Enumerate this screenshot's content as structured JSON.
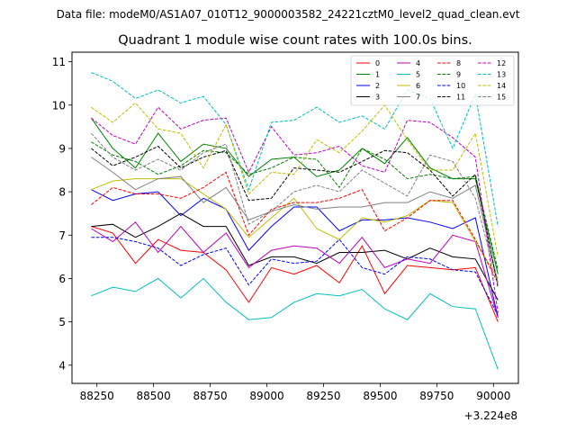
{
  "chart_data": {
    "type": "line",
    "suptitle": "Data file: modeM0/AS1A07_010T12_9000003582_24221cztM0_level2_quad_clean.evt",
    "title": "Quadrant 1 module wise count rates with 100.0s bins.",
    "xlabel": "",
    "ylabel": "",
    "x_offset_label": "+3.224e8",
    "x_offset": 322400000,
    "xlim": [
      88140,
      90110
    ],
    "ylim": [
      3.58,
      11.22
    ],
    "xticks": [
      88250,
      88500,
      88750,
      89000,
      89250,
      89500,
      89750,
      90000
    ],
    "xtick_labels": [
      "88250",
      "88500",
      "88750",
      "89000",
      "89250",
      "89500",
      "89750",
      "90000"
    ],
    "yticks": [
      4,
      5,
      6,
      7,
      8,
      9,
      10,
      11
    ],
    "ytick_labels": [
      "4",
      "5",
      "6",
      "7",
      "8",
      "9",
      "10",
      "11"
    ],
    "x": [
      88225,
      88320,
      88420,
      88520,
      88620,
      88720,
      88820,
      88920,
      89020,
      89120,
      89220,
      89320,
      89420,
      89520,
      89620,
      89720,
      89820,
      89920,
      90020
    ],
    "legend_position": "top-right",
    "series": [
      {
        "name": "0",
        "color": "#ff0000",
        "dash": "solid",
        "values": [
          7.2,
          7.05,
          6.35,
          6.9,
          6.65,
          6.6,
          6.2,
          5.45,
          6.25,
          6.1,
          6.3,
          5.9,
          6.75,
          5.65,
          6.3,
          6.25,
          6.2,
          6.25,
          5.0
        ]
      },
      {
        "name": "1",
        "color": "#008000",
        "dash": "solid",
        "values": [
          9.7,
          9.0,
          8.55,
          9.35,
          8.7,
          9.1,
          9.0,
          8.35,
          8.75,
          8.8,
          8.35,
          8.5,
          9.0,
          8.65,
          9.25,
          8.55,
          8.3,
          8.3,
          6.1
        ]
      },
      {
        "name": "2",
        "color": "#0000ff",
        "dash": "solid",
        "values": [
          8.05,
          7.8,
          7.95,
          8.0,
          7.45,
          7.85,
          7.6,
          6.65,
          7.2,
          7.65,
          7.65,
          7.1,
          7.35,
          7.35,
          7.4,
          7.3,
          7.15,
          7.4,
          5.1
        ]
      },
      {
        "name": "3",
        "color": "#000000",
        "dash": "solid",
        "values": [
          7.2,
          7.25,
          6.95,
          7.2,
          7.5,
          7.2,
          7.2,
          6.3,
          6.5,
          6.5,
          6.35,
          6.6,
          6.6,
          6.65,
          6.45,
          6.7,
          6.5,
          6.45,
          5.5
        ]
      },
      {
        "name": "4",
        "color": "#bf00bf",
        "dash": "solid",
        "values": [
          7.15,
          6.85,
          7.3,
          6.6,
          7.2,
          6.6,
          7.05,
          6.25,
          6.65,
          6.75,
          6.7,
          6.35,
          6.95,
          6.25,
          6.45,
          6.35,
          7.0,
          6.85,
          5.1
        ]
      },
      {
        "name": "5",
        "color": "#00bfbf",
        "dash": "solid",
        "values": [
          5.6,
          5.8,
          5.7,
          6.0,
          5.55,
          6.0,
          5.45,
          5.05,
          5.1,
          5.45,
          5.65,
          5.6,
          5.75,
          5.3,
          5.05,
          5.65,
          5.35,
          5.3,
          3.9
        ]
      },
      {
        "name": "6",
        "color": "#bfbf00",
        "dash": "solid",
        "values": [
          8.05,
          8.25,
          8.3,
          8.3,
          8.3,
          7.95,
          7.6,
          6.95,
          7.4,
          7.85,
          7.15,
          6.9,
          7.4,
          7.3,
          7.45,
          7.8,
          7.75,
          6.85,
          6.0
        ]
      },
      {
        "name": "7",
        "color": "#808080",
        "dash": "solid",
        "values": [
          8.8,
          8.45,
          8.05,
          8.3,
          8.35,
          7.75,
          8.1,
          7.35,
          7.55,
          7.7,
          7.6,
          7.65,
          7.65,
          7.75,
          7.75,
          8.0,
          7.85,
          8.15,
          5.9
        ]
      },
      {
        "name": "8",
        "color": "#ff0000",
        "dash": "dashed",
        "values": [
          7.7,
          8.1,
          7.95,
          7.95,
          7.85,
          8.1,
          8.45,
          7.0,
          7.6,
          7.75,
          7.75,
          7.85,
          8.05,
          7.1,
          7.4,
          7.8,
          7.8,
          6.9,
          5.9
        ]
      },
      {
        "name": "9",
        "color": "#008000",
        "dash": "dashed",
        "values": [
          9.15,
          8.85,
          8.7,
          8.4,
          8.6,
          8.95,
          8.9,
          8.4,
          8.55,
          8.8,
          8.75,
          8.1,
          9.0,
          8.75,
          8.3,
          8.4,
          8.3,
          8.35,
          6.2
        ]
      },
      {
        "name": "10",
        "color": "#0000ff",
        "dash": "dashed",
        "values": [
          6.95,
          6.95,
          6.85,
          6.7,
          6.3,
          6.55,
          6.7,
          5.85,
          6.45,
          6.35,
          6.4,
          6.9,
          6.25,
          6.1,
          6.5,
          6.45,
          6.2,
          6.15,
          5.15
        ]
      },
      {
        "name": "11",
        "color": "#000000",
        "dash": "dashed",
        "values": [
          9.0,
          8.6,
          8.8,
          9.05,
          8.55,
          8.8,
          8.95,
          7.8,
          7.85,
          8.55,
          8.5,
          8.45,
          8.7,
          8.95,
          8.9,
          8.5,
          7.9,
          8.4,
          5.8
        ]
      },
      {
        "name": "12",
        "color": "#bf00bf",
        "dash": "dashed",
        "values": [
          9.7,
          9.3,
          9.1,
          9.95,
          9.45,
          9.65,
          9.7,
          8.45,
          9.5,
          8.85,
          8.9,
          9.05,
          8.6,
          8.45,
          9.65,
          9.6,
          9.25,
          8.8,
          5.2
        ]
      },
      {
        "name": "13",
        "color": "#00bfbf",
        "dash": "dashed",
        "values": [
          10.75,
          10.55,
          10.15,
          10.35,
          10.05,
          10.2,
          9.55,
          8.05,
          9.6,
          9.65,
          9.95,
          9.6,
          9.75,
          9.45,
          10.35,
          10.15,
          9.0,
          10.25,
          7.2
        ]
      },
      {
        "name": "14",
        "color": "#bfbf00",
        "dash": "dashed",
        "values": [
          9.95,
          9.6,
          10.05,
          9.45,
          9.35,
          8.55,
          9.55,
          7.95,
          8.45,
          8.4,
          9.2,
          8.9,
          9.4,
          10.0,
          9.2,
          8.5,
          8.5,
          9.35,
          6.5
        ]
      },
      {
        "name": "15",
        "color": "#808080",
        "dash": "dashed",
        "values": [
          9.35,
          8.8,
          8.5,
          8.75,
          8.5,
          8.9,
          9.1,
          7.25,
          7.55,
          8.0,
          8.15,
          8.0,
          8.5,
          8.2,
          7.9,
          8.85,
          8.7,
          7.85,
          5.85
        ]
      }
    ]
  }
}
